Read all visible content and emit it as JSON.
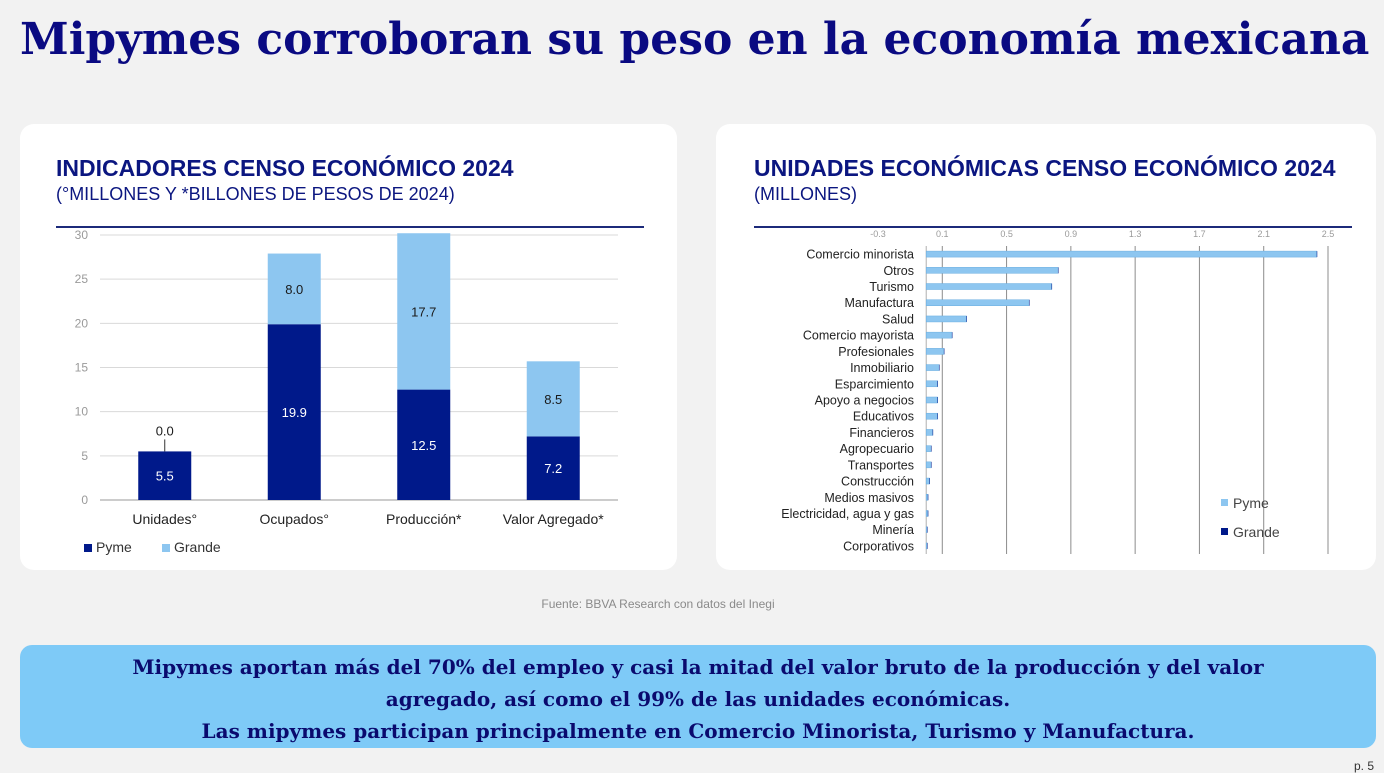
{
  "page": {
    "title": "Mipymes corroboran su peso en la economía mexicana",
    "source": "Fuente: BBVA Research con datos del Inegi",
    "banner_lines": [
      "Mipymes aportan más del 70% del empleo y casi la mitad del valor bruto de la producción y del valor",
      "agregado, así como el 99% de las unidades económicas.",
      "Las mipymes participan principalmente en Comercio Minorista, Turismo y Manufactura."
    ],
    "page_number": "p. 5"
  },
  "colors": {
    "dark": "#00198a",
    "light": "#8dc6f0",
    "title": "#0a0a82",
    "banner": "#7ecaf7"
  },
  "chart_data": [
    {
      "type": "bar",
      "stacked": true,
      "title": "INDICADORES CENSO ECONÓMICO 2024",
      "subtitle": "(°MILLONES Y *BILLONES DE PESOS DE 2024)",
      "categories": [
        "Unidades°",
        "Ocupados°",
        "Producción*",
        "Valor Agregado*"
      ],
      "series": [
        {
          "name": "Pyme",
          "values": [
            5.5,
            19.9,
            12.5,
            7.2
          ],
          "labels": [
            "5.5",
            "19.9",
            "12.5",
            "7.2"
          ]
        },
        {
          "name": "Grande",
          "values": [
            0.0,
            8.0,
            17.7,
            8.5
          ],
          "labels": [
            "0.0",
            "8.0",
            "17.7",
            "8.5"
          ]
        }
      ],
      "yticks": [
        "0",
        "5",
        "10",
        "15",
        "20",
        "25",
        "30"
      ],
      "ylim": [
        0,
        30
      ],
      "grid": true,
      "legend": "bottom-left"
    },
    {
      "type": "bar",
      "orientation": "horizontal",
      "title": "UNIDADES ECONÓMICAS CENSO ECONÓMICO 2024",
      "subtitle": "(MILLONES)",
      "categories": [
        "Comercio minorista",
        "Otros",
        "Turismo",
        "Manufactura",
        "Salud",
        "Comercio mayorista",
        "Profesionales",
        "Inmobiliario",
        "Esparcimiento",
        "Apoyo a negocios",
        "Educativos",
        "Financieros",
        "Agropecuario",
        "Transportes",
        "Construcción",
        "Medios masivos",
        "Electricidad, agua y gas",
        "Minería",
        "Corporativos"
      ],
      "series": [
        {
          "name": "Pyme",
          "values": [
            2.43,
            0.82,
            0.78,
            0.64,
            0.25,
            0.16,
            0.11,
            0.08,
            0.07,
            0.07,
            0.07,
            0.04,
            0.03,
            0.03,
            0.02,
            0.01,
            0.01,
            0.005,
            0.005
          ]
        },
        {
          "name": "Grande",
          "values": [
            0.003,
            0.001,
            0.001,
            0.002,
            0.001,
            0.001,
            0.0005,
            0.0003,
            0.0003,
            0.0005,
            0.0005,
            0.0005,
            0.0003,
            0.0003,
            0.0003,
            0.0001,
            0.0002,
            0.0001,
            0.0001
          ]
        }
      ],
      "xticks": [
        "-0.3",
        "0.1",
        "0.5",
        "0.9",
        "1.3",
        "1.7",
        "2.1",
        "2.5"
      ],
      "xlim": [
        -0.3,
        2.5
      ],
      "grid": true,
      "legend": "bottom-right"
    }
  ]
}
